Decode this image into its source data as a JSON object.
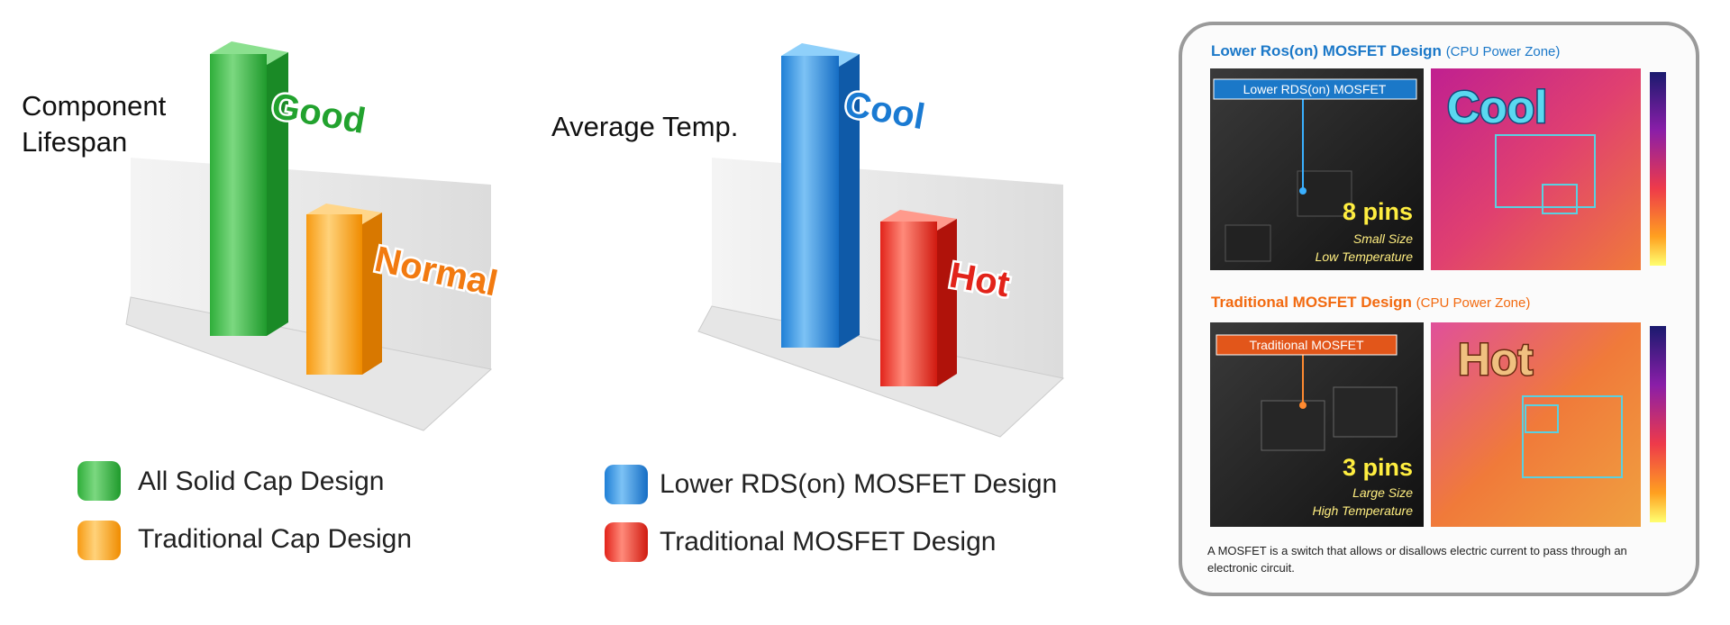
{
  "charts": [
    {
      "axis_label": "Component Lifespan",
      "bar_labels": [
        "Good",
        "Normal"
      ],
      "legend": [
        "All Solid Cap Design",
        "Traditional Cap Design"
      ]
    },
    {
      "axis_label": "Average Temp.",
      "bar_labels": [
        "Cool",
        "Hot"
      ],
      "legend": [
        "Lower RDS(on) MOSFET Design",
        "Traditional MOSFET Design"
      ]
    }
  ],
  "panel": {
    "sections": [
      {
        "title": "Lower Ros(on) MOSFET Design",
        "zone": "(CPU Power Zone)",
        "chip_label": "Lower RDS(on) MOSFET",
        "pins": "8 pins",
        "size": "Small Size",
        "temperature": "Low Temperature",
        "thermal_label": "Cool"
      },
      {
        "title": "Traditional MOSFET Design",
        "zone": "(CPU Power Zone)",
        "chip_label": "Traditional MOSFET",
        "pins": "3 pins",
        "size": "Large Size",
        "temperature": "High Temperature",
        "thermal_label": "Hot"
      }
    ],
    "footnote": "A MOSFET is a switch that allows or disallows electric current to pass through an electronic circuit."
  }
}
